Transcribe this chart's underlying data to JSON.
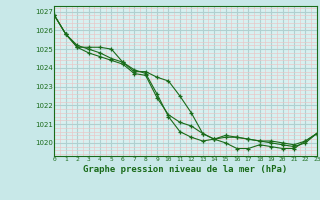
{
  "title": "Graphe pression niveau de la mer (hPa)",
  "background_color": "#c8e8e8",
  "plot_bg_color": "#d8f0f0",
  "grid_major_color": "#b0d0d0",
  "grid_minor_color": "#e8c8c8",
  "line_color": "#1a6b1a",
  "xlim": [
    0,
    23
  ],
  "ylim": [
    1019.3,
    1027.3
  ],
  "yticks": [
    1020,
    1021,
    1022,
    1023,
    1024,
    1025,
    1026,
    1027
  ],
  "xticks": [
    0,
    1,
    2,
    3,
    4,
    5,
    6,
    7,
    8,
    9,
    10,
    11,
    12,
    13,
    14,
    15,
    16,
    17,
    18,
    19,
    20,
    21,
    22,
    23
  ],
  "series": [
    [
      1026.8,
      1025.8,
      1025.1,
      1025.1,
      1025.1,
      1025.0,
      1024.3,
      1023.8,
      1023.8,
      1023.5,
      1023.3,
      1022.5,
      1021.6,
      1020.5,
      1020.2,
      1020.0,
      1019.7,
      1019.7,
      1019.9,
      1019.8,
      1019.7,
      1019.7,
      1020.1,
      1020.5
    ],
    [
      1026.8,
      1025.8,
      1025.1,
      1024.8,
      1024.6,
      1024.4,
      1024.2,
      1023.7,
      1023.6,
      1022.4,
      1021.5,
      1021.1,
      1020.9,
      1020.5,
      1020.2,
      1020.3,
      1020.3,
      1020.2,
      1020.1,
      1020.1,
      1020.0,
      1019.9,
      1020.1,
      1020.5
    ],
    [
      1026.8,
      1025.8,
      1025.2,
      1025.0,
      1024.8,
      1024.5,
      1024.3,
      1023.9,
      1023.7,
      1022.6,
      1021.4,
      1020.6,
      1020.3,
      1020.1,
      1020.2,
      1020.4,
      1020.3,
      1020.2,
      1020.1,
      1020.0,
      1019.9,
      1019.8,
      1020.0,
      1020.5
    ]
  ]
}
